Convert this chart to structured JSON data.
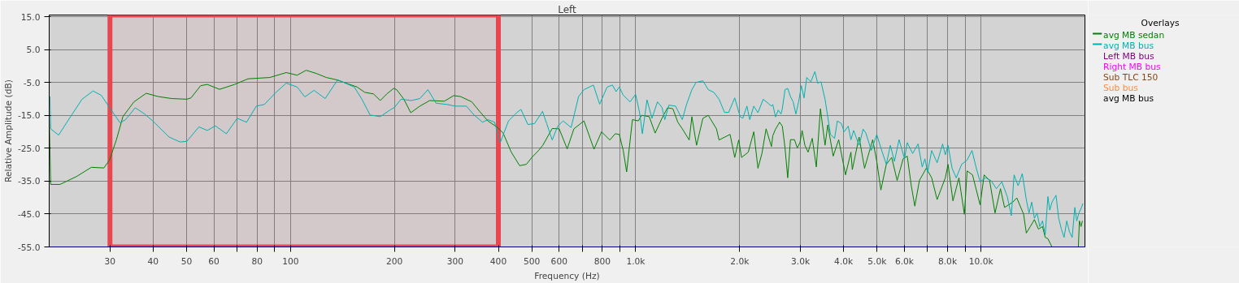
{
  "chart_data": {
    "type": "line",
    "title": "Left",
    "xlabel": "Frequency (Hz)",
    "ylabel": "Relative Amplitude (dB)",
    "legend_title": "Overlays",
    "legend": "right",
    "log": "x",
    "grid": true,
    "xlim": [
      20,
      20000
    ],
    "ylim": [
      -55,
      15.5
    ],
    "xticks": [
      30,
      40,
      50,
      60,
      {
        "value": 70,
        "label": null
      },
      80,
      {
        "value": 90,
        "label": null
      },
      100,
      200,
      300,
      400,
      500,
      600,
      {
        "value": 700,
        "label": null
      },
      800,
      {
        "value": 900,
        "label": null
      },
      {
        "value": 1000,
        "label": "1.0k"
      },
      {
        "value": 2000,
        "label": "2.0k"
      },
      {
        "value": 3000,
        "label": "3.0k"
      },
      {
        "value": 4000,
        "label": "4.0k"
      },
      {
        "value": 5000,
        "label": "5.0k"
      },
      {
        "value": 6000,
        "label": "6.0k"
      },
      {
        "value": 7000,
        "label": null
      },
      {
        "value": 8000,
        "label": "8.0k"
      },
      {
        "value": 9000,
        "label": null
      },
      {
        "value": 10000,
        "label": "10.0k"
      }
    ],
    "yticks": [
      {
        "value": 15,
        "label": "15.0"
      },
      {
        "value": 5,
        "label": "5.0"
      },
      {
        "value": -5,
        "label": "-5.0"
      },
      {
        "value": -15,
        "label": "-15.0"
      },
      {
        "value": -25,
        "label": "-25.0"
      },
      {
        "value": -35,
        "label": "-35.0"
      },
      {
        "value": -45,
        "label": "-45.0"
      },
      {
        "value": -55,
        "label": "-55.0"
      }
    ],
    "ref_lines": [
      {
        "axis": "y",
        "value": -55,
        "color": "#0000ff"
      }
    ],
    "bands": [
      {
        "axis": "x",
        "from": 30,
        "to": 400,
        "color": "#e8474f"
      }
    ],
    "annotations": [
      "Left MB bus",
      "Right MB bus",
      "Sub TLC 150",
      "Sub bus",
      "avg MB bus"
    ],
    "series": [
      {
        "name": "avg MB sedan",
        "color": "#008000",
        "x": [
          20,
          20.2,
          21.5,
          24.0,
          26.5,
          28.8,
          29.9,
          31.3,
          32.7,
          35.2,
          38.2,
          41.4,
          45.3,
          50.1,
          51.5,
          54.9,
          57.4,
          62.3,
          68.9,
          75.3,
          87.1,
          97.2,
          104.5,
          111,
          119,
          127,
          136,
          156,
          164,
          174,
          182,
          190,
          199,
          203,
          213,
          223,
          237,
          253,
          279,
          297,
          311,
          335,
          353,
          373,
          398,
          413,
          436,
          461,
          482,
          500,
          523,
          538,
          573,
          600,
          633,
          662,
          708,
          757,
          796,
          841,
          872,
          896,
          920,
          941,
          978,
          1017,
          1040,
          1094,
          1138,
          1191,
          1236,
          1281,
          1324,
          1364,
          1428,
          1454,
          1500,
          1565,
          1622,
          1713,
          1743,
          1876,
          1935,
          1987,
          2025,
          2118,
          2197,
          2259,
          2320,
          2385,
          2472,
          2494,
          2540,
          2610,
          2658,
          2706,
          2755,
          2806,
          2883,
          2936,
          2990,
          3033,
          3089,
          3156,
          3245,
          3334,
          3427,
          3534,
          3599,
          3731,
          3871,
          4051,
          4200,
          4239,
          4435,
          4599,
          4856,
          4990,
          5128,
          5317,
          5512,
          5716,
          5950,
          6114,
          6281,
          6431,
          6632,
          6941,
          7197,
          7463,
          7882,
          8026,
          8293,
          8631,
          8950,
          9114,
          9451,
          9939,
          10213,
          10590,
          10981,
          11386,
          11700,
          12355,
          12697,
          13290,
          13527,
          13897,
          14277,
          14671,
          15072,
          15346,
          15624,
          16052,
          19140,
          19277,
          19487,
          19662
        ],
        "values": [
          -15.0,
          -36.0,
          -36.0,
          -33.6,
          -30.8,
          -31.0,
          -28.6,
          -22.5,
          -15.4,
          -10.9,
          -8.3,
          -9.3,
          -9.9,
          -10.1,
          -9.7,
          -6.0,
          -5.6,
          -7.1,
          -5.6,
          -3.9,
          -3.5,
          -2.0,
          -2.8,
          -1.3,
          -2.3,
          -3.5,
          -4.2,
          -6.4,
          -8.0,
          -8.5,
          -10.5,
          -8.5,
          -6.8,
          -7.2,
          -10.1,
          -14.2,
          -12.2,
          -10.5,
          -10.7,
          -9.0,
          -9.3,
          -10.9,
          -13.8,
          -16.7,
          -18.7,
          -20.4,
          -26.2,
          -30.3,
          -29.9,
          -27.8,
          -25.7,
          -24.1,
          -19.0,
          -19.1,
          -25.2,
          -19.1,
          -16.7,
          -25.3,
          -20.0,
          -22.5,
          -20.6,
          -20.8,
          -25.7,
          -32.2,
          -16.3,
          -16.7,
          -15.0,
          -15.4,
          -20.4,
          -15.9,
          -12.7,
          -13.0,
          -17.1,
          -19.1,
          -22.5,
          -15.4,
          -24.1,
          -15.9,
          -15.0,
          -19.1,
          -22.5,
          -20.8,
          -27.8,
          -22.5,
          -27.8,
          -26.2,
          -20.0,
          -31.1,
          -26.6,
          -19.1,
          -24.5,
          -21.2,
          -19.2,
          -17.1,
          -18.3,
          -24.9,
          -34.0,
          -22.4,
          -22.4,
          -24.9,
          -23.3,
          -19.6,
          -24.1,
          -26.2,
          -22.0,
          -30.7,
          -13.0,
          -24.1,
          -17.9,
          -27.4,
          -22.4,
          -33.1,
          -26.2,
          -31.5,
          -21.6,
          -31.1,
          -22.4,
          -29.0,
          -37.7,
          -29.9,
          -27.8,
          -34.8,
          -28.2,
          -27.4,
          -36.4,
          -42.6,
          -34.8,
          -31.1,
          -34.0,
          -40.6,
          -34.0,
          -29.9,
          -41.0,
          -34.0,
          -45.1,
          -31.9,
          -33.1,
          -42.2,
          -33.1,
          -34.8,
          -44.7,
          -37.3,
          -43.0,
          -41.4,
          -40.1,
          -45.1,
          -50.8,
          -48.8,
          -46.7,
          -49.6,
          -48.8,
          -52.1,
          -52.5,
          -55,
          -55,
          -47.1,
          -48.8,
          -47.1
        ]
      },
      {
        "name": "avg MB bus",
        "color": "#00b0b0",
        "x": [
          20.1,
          20.2,
          21.3,
          23.2,
          24.9,
          26.8,
          28.3,
          29.9,
          32.1,
          33.3,
          35.5,
          37.8,
          39.9,
          44.5,
          47.9,
          50.1,
          54.3,
          57.4,
          60.6,
          65.2,
          70.1,
          74.6,
          79.6,
          84.0,
          90.4,
          97.2,
          104.5,
          106,
          110,
          117,
          126,
          137,
          153,
          161,
          170,
          182,
          194,
          200,
          209,
          224,
          237,
          250,
          264,
          284,
          300,
          323,
          341,
          360,
          373,
          390,
          405,
          428,
          452,
          465,
          487,
          509,
          528,
          537,
          552,
          573,
          594,
          616,
          650,
          683,
          708,
          754,
          786,
          826,
          856,
          877,
          896,
          920,
          963,
          999,
          1026,
          1045,
          1078,
          1114,
          1156,
          1191,
          1214,
          1247,
          1304,
          1364,
          1403,
          1454,
          1495,
          1565,
          1622,
          1683,
          1743,
          1808,
          1858,
          1935,
          2006,
          2042,
          2099,
          2139,
          2197,
          2259,
          2340,
          2472,
          2494,
          2540,
          2586,
          2634,
          2658,
          2706,
          2755,
          2806,
          2857,
          2909,
          2963,
          3017,
          3072,
          3128,
          3215,
          3303,
          3364,
          3440,
          3534,
          3599,
          3664,
          3766,
          3836,
          3941,
          4014,
          4124,
          4200,
          4277,
          4435,
          4557,
          4640,
          4810,
          4990,
          5128,
          5317,
          5463,
          5613,
          5790,
          6004,
          6114,
          6338,
          6573,
          6755,
          6879,
          7004,
          7197,
          7463,
          7740,
          7882,
          8026,
          8248,
          8476,
          8790,
          9114,
          9417,
          9671,
          9939,
          10307,
          10686,
          11081,
          11490,
          11914,
          12242,
          12468,
          12809,
          13168,
          13527,
          13772,
          14023,
          14277,
          14536,
          14800,
          15072,
          15346,
          15624,
          15820,
          16052,
          16490,
          16789,
          17093,
          17403,
          17718,
          18039,
          18370,
          18695,
          18934,
          19207,
          19555,
          19732
        ],
        "values": [
          -9.3,
          -19.1,
          -21.0,
          -15.0,
          -10.1,
          -7.6,
          -8.9,
          -12.6,
          -17.3,
          -16.3,
          -12.7,
          -14.6,
          -16.7,
          -21.6,
          -23.1,
          -22.9,
          -18.5,
          -19.6,
          -18.2,
          -20.6,
          -15.9,
          -17.1,
          -12.2,
          -11.7,
          -8.2,
          -5.2,
          -6.4,
          -7.2,
          -9.4,
          -7.4,
          -9.9,
          -4.2,
          -6.4,
          -10.1,
          -14.9,
          -15.4,
          -13.4,
          -12.6,
          -10.1,
          -10.5,
          -9.9,
          -7.2,
          -11.3,
          -11.7,
          -12.2,
          -12.2,
          -15.0,
          -17.1,
          -16.3,
          -17.1,
          -23.3,
          -16.7,
          -14.2,
          -13.2,
          -17.8,
          -17.5,
          -15.0,
          -13.8,
          -17.5,
          -22.5,
          -18.3,
          -16.7,
          -18.7,
          -9.3,
          -7.2,
          -5.8,
          -11.6,
          -6.4,
          -5.8,
          -7.8,
          -6.4,
          -8.9,
          -10.9,
          -8.6,
          -14.2,
          -20.6,
          -10.3,
          -15.9,
          -10.9,
          -12.6,
          -16.3,
          -11.9,
          -12.2,
          -16.3,
          -11.7,
          -7.2,
          -5.0,
          -4.5,
          -7.2,
          -8.0,
          -10.1,
          -14.1,
          -14.1,
          -9.7,
          -15.4,
          -15.9,
          -12.2,
          -16.3,
          -12.2,
          -14.2,
          -10.1,
          -12.2,
          -11.7,
          -15.5,
          -13.4,
          -14.6,
          -13.0,
          -7.2,
          -6.8,
          -9.3,
          -10.9,
          -14.6,
          -10.9,
          -6.0,
          -9.7,
          -3.5,
          -4.8,
          -1.7,
          -5.2,
          -4.8,
          -10.1,
          -15.5,
          -20.8,
          -22.0,
          -16.7,
          -17.5,
          -20.0,
          -18.3,
          -22.4,
          -19.6,
          -24.1,
          -19.2,
          -20.4,
          -25.7,
          -20.8,
          -24.9,
          -29.9,
          -24.1,
          -29.0,
          -22.4,
          -28.2,
          -23.3,
          -26.6,
          -23.7,
          -30.7,
          -28.2,
          -32.3,
          -25.7,
          -29.4,
          -23.7,
          -27.0,
          -24.1,
          -31.1,
          -34.0,
          -29.9,
          -28.6,
          -25.7,
          -30.7,
          -35.2,
          -34.0,
          -34.8,
          -37.3,
          -35.2,
          -39.7,
          -45.5,
          -33.1,
          -36.4,
          -32.7,
          -40.6,
          -44.7,
          -41.4,
          -46.3,
          -44.7,
          -48.8,
          -47.1,
          -51.3,
          -39.7,
          -43.8,
          -41.4,
          -39.3,
          -46.3,
          -49.6,
          -52.1,
          -47.1,
          -50.4,
          -52.1,
          -43.0,
          -47.1,
          -44.7,
          -43.0,
          -41.8
        ]
      }
    ]
  }
}
